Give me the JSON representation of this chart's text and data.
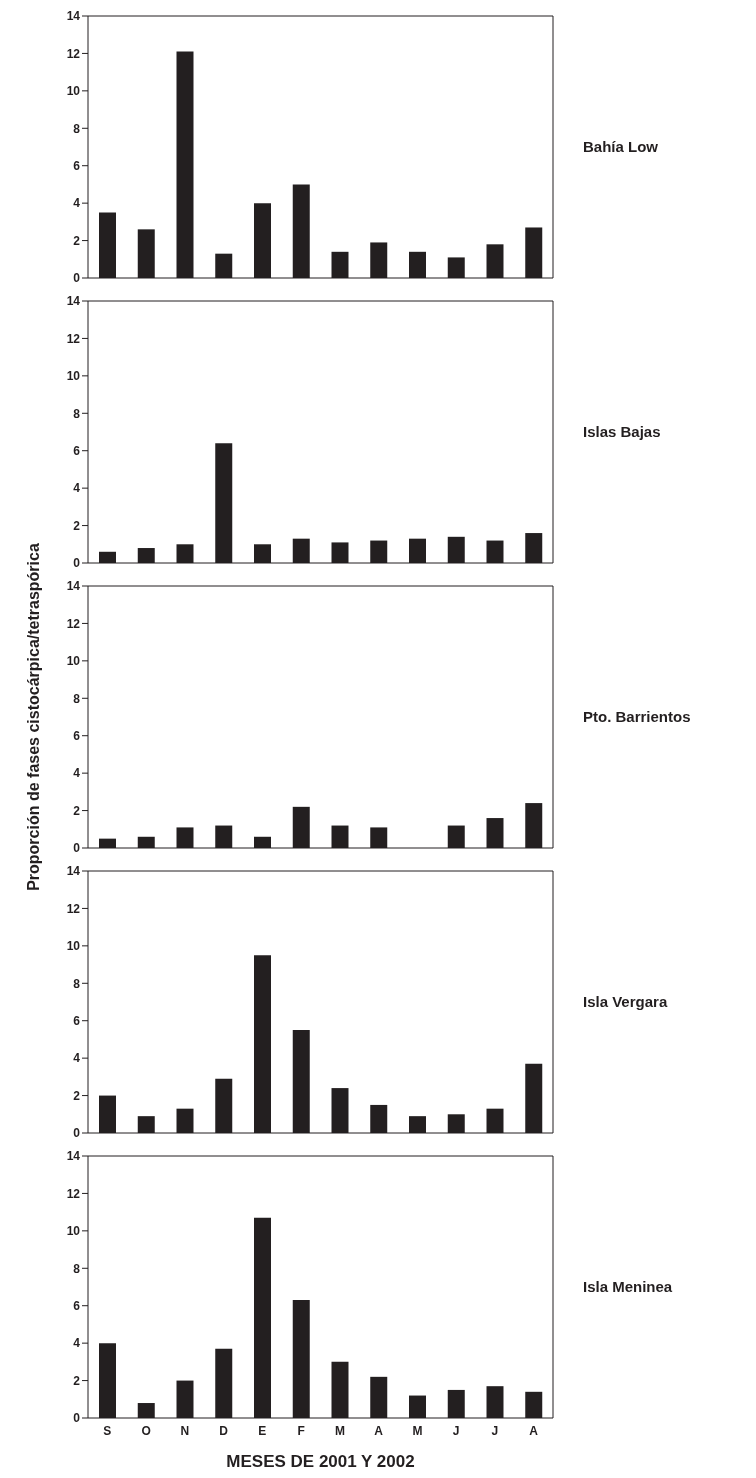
{
  "chart_data": [
    {
      "type": "bar",
      "annotations": [
        "Bahía Low"
      ],
      "categories": [
        null,
        null,
        null,
        null,
        null,
        null,
        null,
        null,
        null,
        null,
        null,
        null
      ],
      "values": [
        3.5,
        2.6,
        12.1,
        1.3,
        4.0,
        5.0,
        1.4,
        1.9,
        1.4,
        1.1,
        1.8,
        2.7
      ],
      "color": "#231f20",
      "ylim": [
        0,
        14
      ],
      "yticks": [
        0,
        2,
        4,
        6,
        8,
        10,
        12,
        14
      ],
      "tick_labels": "y",
      "grid": false,
      "legend": false
    },
    {
      "type": "bar",
      "annotations": [
        "Islas Bajas"
      ],
      "categories": [
        null,
        null,
        null,
        null,
        null,
        null,
        null,
        null,
        null,
        null,
        null,
        null
      ],
      "values": [
        0.6,
        0.8,
        1.0,
        6.4,
        1.0,
        1.3,
        1.1,
        1.2,
        1.3,
        1.4,
        1.2,
        1.6
      ],
      "color": "#231f20",
      "ylim": [
        0,
        14
      ],
      "yticks": [
        0,
        2,
        4,
        6,
        8,
        10,
        12,
        14
      ],
      "tick_labels": "y",
      "grid": false,
      "legend": false
    },
    {
      "type": "bar",
      "annotations": [
        "Pto. Barrientos"
      ],
      "ylabel": "Proporción de fases cistocárpica/tetraspórica",
      "categories": [
        null,
        null,
        null,
        null,
        null,
        null,
        null,
        null,
        null,
        null,
        null,
        null
      ],
      "values": [
        0.5,
        0.6,
        1.1,
        1.2,
        0.6,
        2.2,
        1.2,
        1.1,
        null,
        1.2,
        1.6,
        2.4
      ],
      "color": "#231f20",
      "ylim": [
        0,
        14
      ],
      "yticks": [
        0,
        2,
        4,
        6,
        8,
        10,
        12,
        14
      ],
      "tick_labels": "y",
      "grid": false,
      "legend": false
    },
    {
      "type": "bar",
      "annotations": [
        "Isla Vergara"
      ],
      "categories": [
        null,
        null,
        null,
        null,
        null,
        null,
        null,
        null,
        null,
        null,
        null,
        null
      ],
      "values": [
        2.0,
        0.9,
        1.3,
        2.9,
        9.5,
        5.5,
        2.4,
        1.5,
        0.9,
        1.0,
        1.3,
        3.7
      ],
      "color": "#231f20",
      "ylim": [
        0,
        14
      ],
      "yticks": [
        0,
        2,
        4,
        6,
        8,
        10,
        12,
        14
      ],
      "tick_labels": "y",
      "grid": false,
      "legend": false
    },
    {
      "type": "bar",
      "annotations": [
        "Isla Meninea"
      ],
      "xlabel": "MESES DE 2001 Y 2002",
      "categories": [
        "S",
        "O",
        "N",
        "D",
        "E",
        "F",
        "M",
        "A",
        "M",
        "J",
        "J",
        "A"
      ],
      "values": [
        4.0,
        0.8,
        2.0,
        3.7,
        10.7,
        6.3,
        3.0,
        2.2,
        1.2,
        1.5,
        1.7,
        1.4
      ],
      "color": "#231f20",
      "ylim": [
        0,
        14
      ],
      "yticks": [
        0,
        2,
        4,
        6,
        8,
        10,
        12,
        14
      ],
      "grid": false,
      "legend": false
    }
  ]
}
